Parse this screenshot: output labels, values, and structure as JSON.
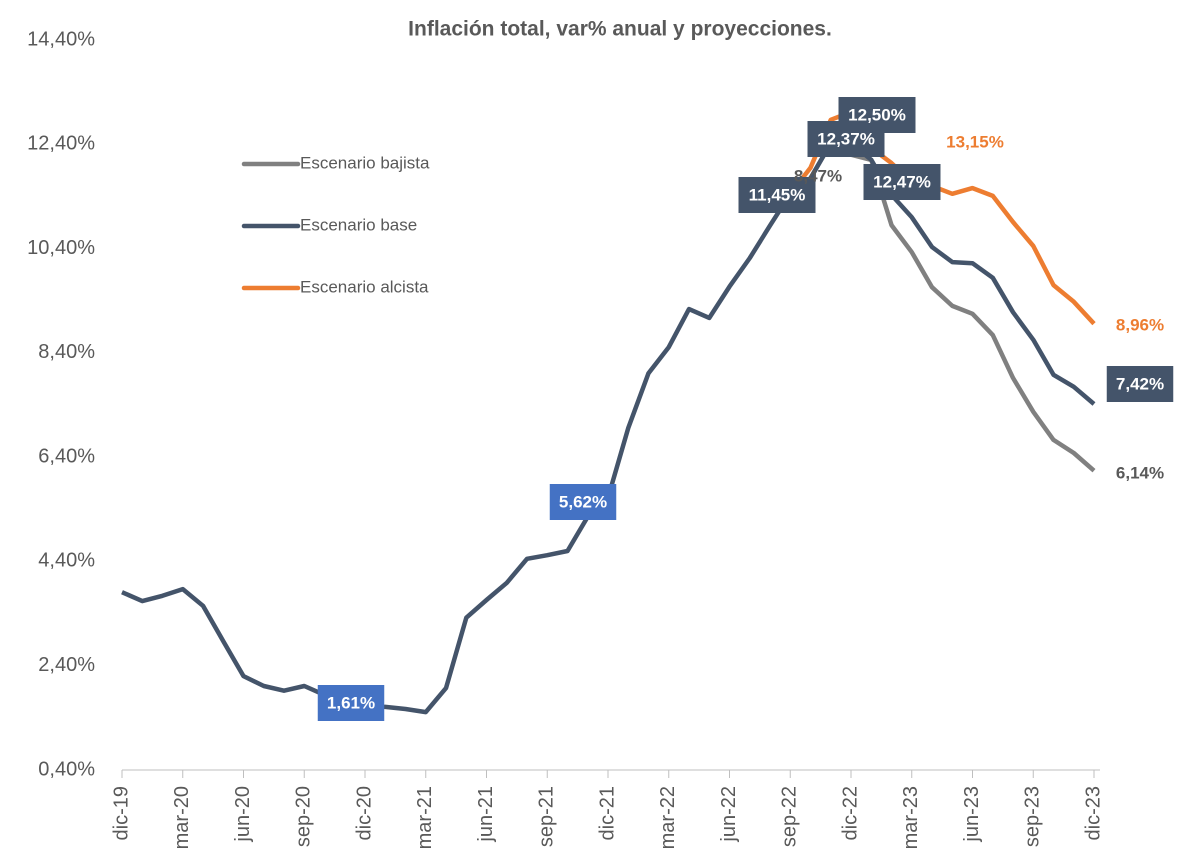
{
  "chart_data": {
    "type": "line",
    "title": "Inflación total, var% anual y proyecciones.",
    "categories": [
      "dic-19",
      null,
      null,
      "mar-20",
      null,
      null,
      "jun-20",
      null,
      null,
      "sep-20",
      null,
      null,
      "dic-20",
      null,
      null,
      "mar-21",
      null,
      null,
      "jun-21",
      null,
      null,
      "sep-21",
      null,
      null,
      "dic-21",
      null,
      null,
      "mar-22",
      null,
      null,
      "jun-22",
      null,
      null,
      "sep-22",
      null,
      null,
      "dic-22",
      null,
      null,
      "mar-23",
      null,
      null,
      "jun-23",
      null,
      null,
      "sep-23",
      null,
      null,
      "dic-23"
    ],
    "series": [
      {
        "name": "Escenario bajista",
        "color": "#808080",
        "values": [
          null,
          null,
          null,
          null,
          null,
          null,
          null,
          null,
          null,
          null,
          null,
          null,
          null,
          null,
          null,
          null,
          null,
          null,
          null,
          null,
          null,
          null,
          null,
          null,
          null,
          null,
          null,
          null,
          null,
          null,
          null,
          null,
          null,
          11.45,
          11.75,
          12.42,
          12.2,
          12.1,
          10.85,
          10.33,
          9.66,
          9.3,
          9.15,
          8.74,
          7.92,
          7.27,
          6.73,
          6.48,
          6.14
        ]
      },
      {
        "name": "Escenario base",
        "color": "#44546a",
        "values": [
          3.81,
          3.64,
          3.74,
          3.87,
          3.55,
          2.87,
          2.2,
          2.01,
          1.92,
          2.01,
          1.84,
          1.74,
          1.61,
          1.61,
          1.57,
          1.51,
          1.97,
          3.32,
          3.66,
          3.99,
          4.45,
          4.52,
          4.6,
          5.26,
          5.62,
          6.96,
          8.01,
          8.51,
          9.24,
          9.07,
          9.67,
          10.22,
          10.84,
          11.45,
          11.75,
          12.42,
          12.42,
          12.1,
          11.43,
          11.0,
          10.43,
          10.14,
          10.12,
          9.84,
          9.18,
          8.65,
          7.98,
          7.75,
          7.42
        ]
      },
      {
        "name": "Escenario alcista",
        "color": "#ed7d31",
        "values": [
          null,
          null,
          null,
          null,
          null,
          null,
          null,
          null,
          null,
          null,
          null,
          null,
          null,
          null,
          null,
          null,
          null,
          null,
          null,
          null,
          null,
          null,
          null,
          null,
          null,
          null,
          null,
          null,
          null,
          null,
          null,
          null,
          null,
          11.45,
          11.95,
          12.87,
          13.02,
          12.33,
          12.04,
          11.68,
          11.6,
          11.45,
          11.56,
          11.41,
          10.91,
          10.45,
          9.7,
          9.38,
          8.96
        ]
      }
    ],
    "ylim": [
      0.4,
      14.4
    ],
    "yticks": [
      {
        "value": 0.4,
        "label": "0,40%"
      },
      {
        "value": 2.4,
        "label": "2,40%"
      },
      {
        "value": 4.4,
        "label": "4,40%"
      },
      {
        "value": 6.4,
        "label": "6,40%"
      },
      {
        "value": 8.4,
        "label": "8,40%"
      },
      {
        "value": 10.4,
        "label": "10,40%"
      },
      {
        "value": 12.4,
        "label": "12,40%"
      },
      {
        "value": 14.4,
        "label": "14,40%"
      }
    ],
    "legend": "upper left",
    "annotations": [
      "1,61%",
      "5,62%",
      "11,45%",
      "8,47%",
      "12,37%",
      "12,50%",
      "13,15%",
      "12,47%",
      "8,96%",
      "7,42%",
      "6,14%"
    ]
  }
}
